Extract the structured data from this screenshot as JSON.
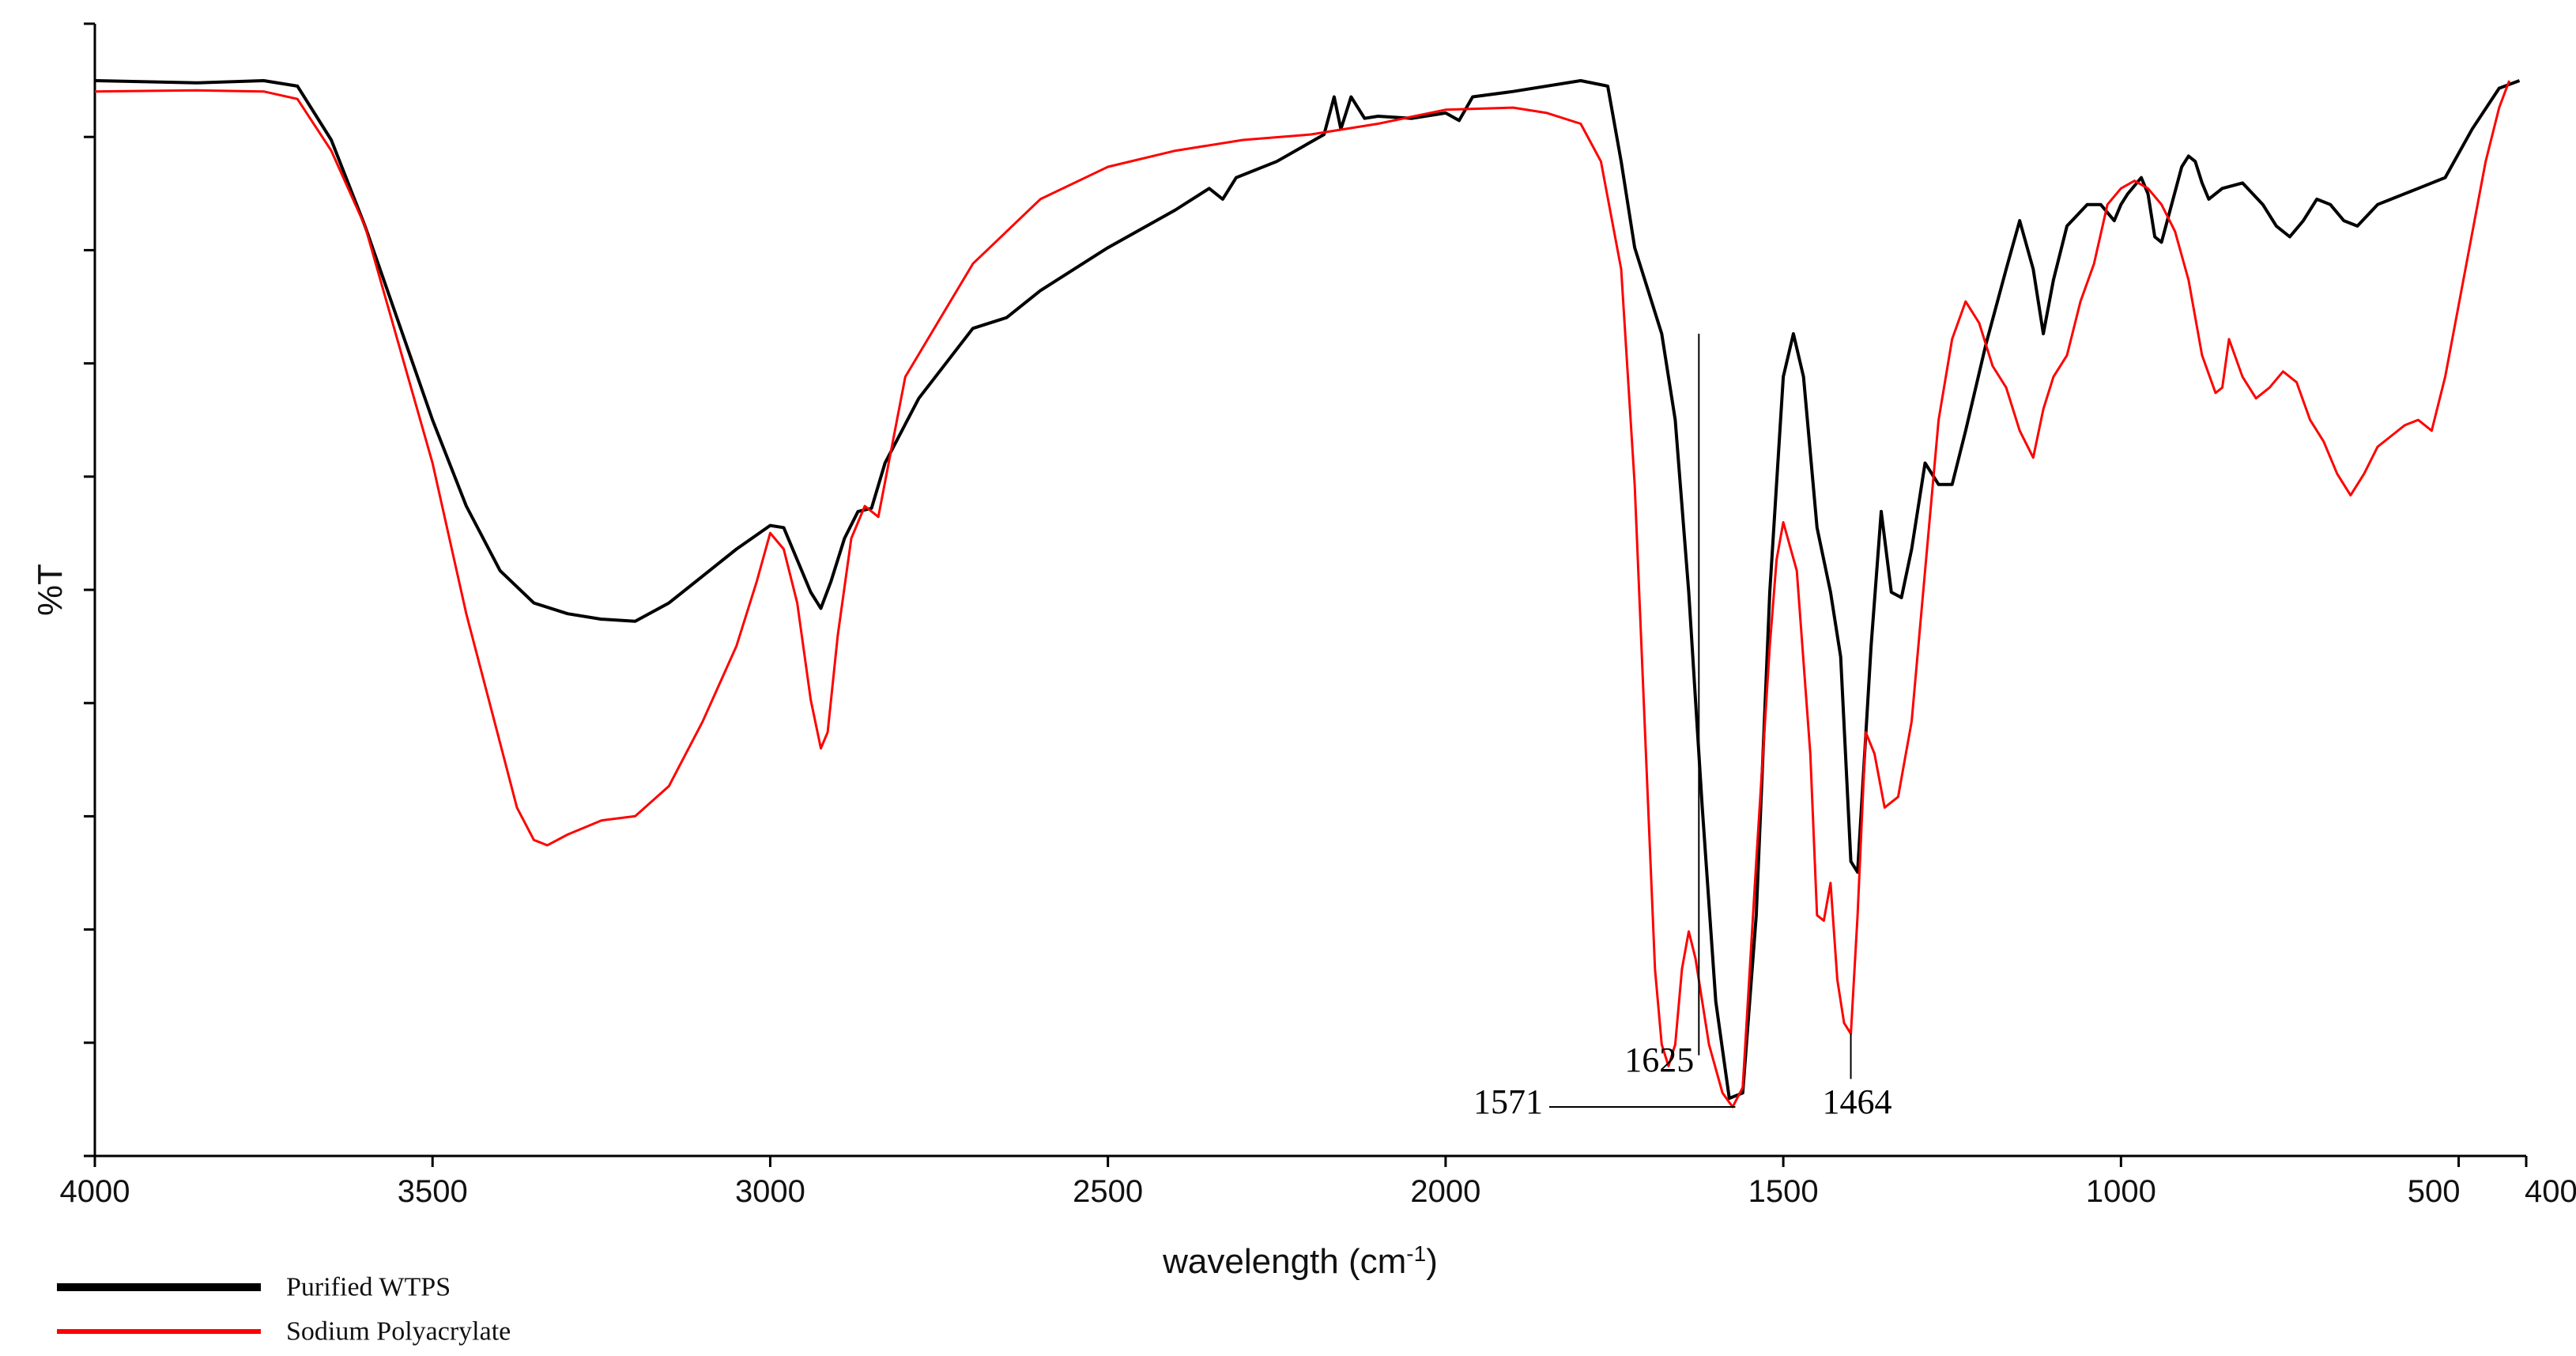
{
  "chart_data": {
    "type": "line",
    "xlabel": "wavelength (cm",
    "xlabel_sup": "-1",
    "xlabel_close": ")",
    "ylabel": "%T",
    "xlim": [
      4000,
      400
    ],
    "ylim": [
      0,
      100
    ],
    "x_reversed": true,
    "x_ticks": [
      {
        "value": 4000,
        "label": "4000"
      },
      {
        "value": 3500,
        "label": "3500"
      },
      {
        "value": 3000,
        "label": "3000"
      },
      {
        "value": 2500,
        "label": "2500"
      },
      {
        "value": 2000,
        "label": "2000"
      },
      {
        "value": 1500,
        "label": "1500"
      },
      {
        "value": 1000,
        "label": "1000"
      },
      {
        "value": 500,
        "label": "500"
      },
      {
        "value": 400,
        "label": "400"
      }
    ],
    "y_tick_count": 11,
    "grid": false,
    "legend_position": "bottom-left",
    "series": [
      {
        "name": "Purified WTPS",
        "color": "#000000",
        "points": [
          [
            4000,
            97.5
          ],
          [
            3850,
            97.3
          ],
          [
            3750,
            97.5
          ],
          [
            3700,
            97
          ],
          [
            3650,
            92
          ],
          [
            3600,
            84
          ],
          [
            3550,
            75
          ],
          [
            3500,
            66
          ],
          [
            3450,
            58
          ],
          [
            3400,
            52
          ],
          [
            3350,
            49
          ],
          [
            3300,
            48
          ],
          [
            3250,
            47.5
          ],
          [
            3200,
            47.3
          ],
          [
            3150,
            49
          ],
          [
            3100,
            51.5
          ],
          [
            3050,
            54
          ],
          [
            3000,
            56.2
          ],
          [
            2980,
            56
          ],
          [
            2960,
            53
          ],
          [
            2940,
            50
          ],
          [
            2925,
            48.5
          ],
          [
            2910,
            51
          ],
          [
            2890,
            55
          ],
          [
            2870,
            57.5
          ],
          [
            2850,
            57.8
          ],
          [
            2830,
            62
          ],
          [
            2780,
            68
          ],
          [
            2700,
            74.5
          ],
          [
            2650,
            75.5
          ],
          [
            2600,
            78
          ],
          [
            2500,
            82
          ],
          [
            2400,
            85.5
          ],
          [
            2350,
            87.5
          ],
          [
            2330,
            86.5
          ],
          [
            2310,
            88.5
          ],
          [
            2250,
            90
          ],
          [
            2180,
            92.5
          ],
          [
            2165,
            96
          ],
          [
            2155,
            93
          ],
          [
            2140,
            96
          ],
          [
            2120,
            94
          ],
          [
            2100,
            94.2
          ],
          [
            2050,
            94
          ],
          [
            2000,
            94.5
          ],
          [
            1980,
            93.8
          ],
          [
            1960,
            96
          ],
          [
            1900,
            96.5
          ],
          [
            1800,
            97.5
          ],
          [
            1760,
            97
          ],
          [
            1740,
            90
          ],
          [
            1720,
            82
          ],
          [
            1700,
            78
          ],
          [
            1680,
            74
          ],
          [
            1660,
            66
          ],
          [
            1640,
            50
          ],
          [
            1620,
            30
          ],
          [
            1600,
            12
          ],
          [
            1580,
            3
          ],
          [
            1560,
            3.5
          ],
          [
            1540,
            20
          ],
          [
            1520,
            50
          ],
          [
            1500,
            70
          ],
          [
            1485,
            74
          ],
          [
            1470,
            70
          ],
          [
            1450,
            56
          ],
          [
            1430,
            50
          ],
          [
            1415,
            44
          ],
          [
            1400,
            25
          ],
          [
            1390,
            24
          ],
          [
            1370,
            45
          ],
          [
            1355,
            57.5
          ],
          [
            1340,
            50
          ],
          [
            1325,
            49.5
          ],
          [
            1310,
            54
          ],
          [
            1290,
            62
          ],
          [
            1270,
            60
          ],
          [
            1250,
            60
          ],
          [
            1230,
            65
          ],
          [
            1200,
            73
          ],
          [
            1170,
            80
          ],
          [
            1150,
            84.5
          ],
          [
            1130,
            80
          ],
          [
            1115,
            74
          ],
          [
            1100,
            79
          ],
          [
            1080,
            84
          ],
          [
            1050,
            86
          ],
          [
            1030,
            86
          ],
          [
            1010,
            84.5
          ],
          [
            1000,
            86
          ],
          [
            990,
            87
          ],
          [
            970,
            88.5
          ],
          [
            960,
            87
          ],
          [
            950,
            83
          ],
          [
            940,
            82.5
          ],
          [
            925,
            86
          ],
          [
            910,
            89.5
          ],
          [
            900,
            90.5
          ],
          [
            890,
            90
          ],
          [
            880,
            88
          ],
          [
            870,
            86.5
          ],
          [
            850,
            87.5
          ],
          [
            820,
            88
          ],
          [
            790,
            86
          ],
          [
            770,
            84
          ],
          [
            750,
            83
          ],
          [
            730,
            84.5
          ],
          [
            710,
            86.5
          ],
          [
            690,
            86
          ],
          [
            670,
            84.5
          ],
          [
            650,
            84
          ],
          [
            620,
            86
          ],
          [
            600,
            86.5
          ],
          [
            560,
            87.5
          ],
          [
            520,
            88.5
          ],
          [
            480,
            93
          ],
          [
            440,
            96.8
          ],
          [
            410,
            97.5
          ]
        ]
      },
      {
        "name": "Sodium Polyacrylate",
        "color": "#ff0000",
        "points": [
          [
            4000,
            96.5
          ],
          [
            3850,
            96.6
          ],
          [
            3750,
            96.5
          ],
          [
            3700,
            95.8
          ],
          [
            3650,
            91
          ],
          [
            3600,
            84
          ],
          [
            3550,
            73
          ],
          [
            3500,
            62
          ],
          [
            3450,
            48
          ],
          [
            3400,
            36
          ],
          [
            3375,
            30
          ],
          [
            3350,
            27
          ],
          [
            3330,
            26.5
          ],
          [
            3300,
            27.5
          ],
          [
            3250,
            28.8
          ],
          [
            3200,
            29.2
          ],
          [
            3150,
            32
          ],
          [
            3100,
            38
          ],
          [
            3050,
            45
          ],
          [
            3020,
            51
          ],
          [
            3000,
            55.5
          ],
          [
            2980,
            54
          ],
          [
            2960,
            49
          ],
          [
            2940,
            40
          ],
          [
            2925,
            35.5
          ],
          [
            2915,
            37
          ],
          [
            2900,
            46
          ],
          [
            2880,
            55
          ],
          [
            2860,
            58
          ],
          [
            2840,
            57
          ],
          [
            2800,
            70
          ],
          [
            2700,
            80.5
          ],
          [
            2600,
            86.5
          ],
          [
            2500,
            89.5
          ],
          [
            2400,
            91
          ],
          [
            2300,
            92
          ],
          [
            2200,
            92.5
          ],
          [
            2100,
            93.5
          ],
          [
            2000,
            94.8
          ],
          [
            1900,
            95
          ],
          [
            1850,
            94.5
          ],
          [
            1800,
            93.5
          ],
          [
            1770,
            90
          ],
          [
            1740,
            80
          ],
          [
            1720,
            60
          ],
          [
            1700,
            30
          ],
          [
            1690,
            15
          ],
          [
            1680,
            8
          ],
          [
            1670,
            6
          ],
          [
            1660,
            8
          ],
          [
            1650,
            15
          ],
          [
            1640,
            18.5
          ],
          [
            1630,
            16
          ],
          [
            1610,
            8
          ],
          [
            1590,
            3.5
          ],
          [
            1575,
            2.2
          ],
          [
            1560,
            4
          ],
          [
            1540,
            25
          ],
          [
            1520,
            45
          ],
          [
            1510,
            53
          ],
          [
            1500,
            56.5
          ],
          [
            1480,
            52
          ],
          [
            1460,
            35
          ],
          [
            1450,
            20
          ],
          [
            1440,
            19.5
          ],
          [
            1430,
            23
          ],
          [
            1420,
            14
          ],
          [
            1410,
            10
          ],
          [
            1400,
            9
          ],
          [
            1390,
            20
          ],
          [
            1378,
            37
          ],
          [
            1365,
            35
          ],
          [
            1350,
            30
          ],
          [
            1330,
            31
          ],
          [
            1310,
            38
          ],
          [
            1290,
            52
          ],
          [
            1270,
            66
          ],
          [
            1250,
            73.5
          ],
          [
            1230,
            77
          ],
          [
            1210,
            75
          ],
          [
            1190,
            71
          ],
          [
            1170,
            69
          ],
          [
            1150,
            65
          ],
          [
            1130,
            62.5
          ],
          [
            1115,
            67
          ],
          [
            1100,
            70
          ],
          [
            1080,
            72
          ],
          [
            1060,
            77
          ],
          [
            1040,
            80.5
          ],
          [
            1020,
            86
          ],
          [
            1000,
            87.5
          ],
          [
            980,
            88.2
          ],
          [
            960,
            87.5
          ],
          [
            940,
            86
          ],
          [
            920,
            83.5
          ],
          [
            900,
            79
          ],
          [
            880,
            72
          ],
          [
            860,
            68.5
          ],
          [
            850,
            69
          ],
          [
            840,
            73.5
          ],
          [
            820,
            70
          ],
          [
            800,
            68
          ],
          [
            780,
            69
          ],
          [
            760,
            70.5
          ],
          [
            740,
            69.5
          ],
          [
            720,
            66
          ],
          [
            700,
            64
          ],
          [
            680,
            61
          ],
          [
            660,
            59
          ],
          [
            640,
            61
          ],
          [
            620,
            63.5
          ],
          [
            600,
            64.5
          ],
          [
            580,
            65.5
          ],
          [
            560,
            66
          ],
          [
            540,
            65
          ],
          [
            520,
            70
          ],
          [
            490,
            80
          ],
          [
            460,
            90
          ],
          [
            440,
            95
          ],
          [
            425,
            97.5
          ]
        ]
      }
    ],
    "annotations": [
      {
        "label": "1625",
        "x": 1625
      },
      {
        "label": "1571",
        "x": 1571
      },
      {
        "label": "1464",
        "x": 1464
      }
    ]
  },
  "legend": {
    "items": [
      {
        "label": "Purified WTPS",
        "color": "#000000"
      },
      {
        "label": "Sodium Polyacrylate",
        "color": "#ff0000"
      }
    ]
  }
}
